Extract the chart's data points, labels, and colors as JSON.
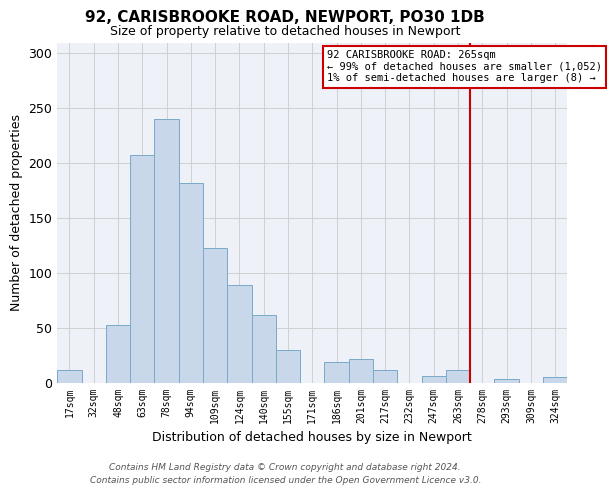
{
  "title": "92, CARISBROOKE ROAD, NEWPORT, PO30 1DB",
  "subtitle": "Size of property relative to detached houses in Newport",
  "xlabel": "Distribution of detached houses by size in Newport",
  "ylabel": "Number of detached properties",
  "bin_labels": [
    "17sqm",
    "32sqm",
    "48sqm",
    "63sqm",
    "78sqm",
    "94sqm",
    "109sqm",
    "124sqm",
    "140sqm",
    "155sqm",
    "171sqm",
    "186sqm",
    "201sqm",
    "217sqm",
    "232sqm",
    "247sqm",
    "263sqm",
    "278sqm",
    "293sqm",
    "309sqm",
    "324sqm"
  ],
  "bar_heights": [
    11,
    0,
    52,
    207,
    240,
    182,
    123,
    89,
    62,
    30,
    0,
    19,
    21,
    11,
    0,
    6,
    11,
    0,
    3,
    0,
    5
  ],
  "bar_color": "#c8d8ea",
  "bar_edgecolor": "#7aaac8",
  "grid_color": "#d0d0d0",
  "vline_x_index": 16,
  "vline_color": "#cc0000",
  "annotation_title": "92 CARISBROOKE ROAD: 265sqm",
  "annotation_line1": "← 99% of detached houses are smaller (1,052)",
  "annotation_line2": "1% of semi-detached houses are larger (8) →",
  "annotation_box_color": "#cc0000",
  "annotation_bg": "#ffffff",
  "ylim": [
    0,
    310
  ],
  "yticks": [
    0,
    50,
    100,
    150,
    200,
    250,
    300
  ],
  "footer_line1": "Contains HM Land Registry data © Crown copyright and database right 2024.",
  "footer_line2": "Contains public sector information licensed under the Open Government Licence v3.0.",
  "figsize": [
    6.0,
    5.0
  ],
  "dpi": 100
}
